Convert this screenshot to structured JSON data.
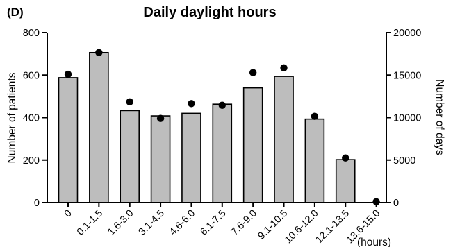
{
  "panel_label": "(D)",
  "chart_data": {
    "type": "bar",
    "title": "Daily daylight hours",
    "xlabel": "(hours)",
    "categories": [
      "0",
      "0.1-1.5",
      "1.6-3.0",
      "3.1-4.5",
      "4.6-6.0",
      "6.1-7.5",
      "7.6-9.0",
      "9.1-10.5",
      "10.6-12.0",
      "12.1-13.5",
      "13.6-15.0"
    ],
    "series": [
      {
        "values": [
          588,
          706,
          433,
          408,
          420,
          463,
          540,
          594,
          393,
          202,
          0
        ],
        "axis": "left",
        "style": "bar"
      },
      {
        "values": [
          15100,
          17650,
          11850,
          9900,
          11650,
          11450,
          15300,
          15850,
          10150,
          5250,
          100
        ],
        "axis": "right",
        "style": "point"
      }
    ],
    "ylabel": "Number of patients",
    "ylim": [
      0,
      800
    ],
    "yticks": [
      0,
      200,
      400,
      600,
      800
    ],
    "y2label": "Number of days",
    "y2lim": [
      0,
      20000
    ],
    "y2ticks": [
      0,
      5000,
      10000,
      15000,
      20000
    ],
    "grid": false,
    "colors": {
      "bar_fill": "#bdbdbd",
      "bar_stroke": "#000000",
      "point": "#000000"
    }
  }
}
